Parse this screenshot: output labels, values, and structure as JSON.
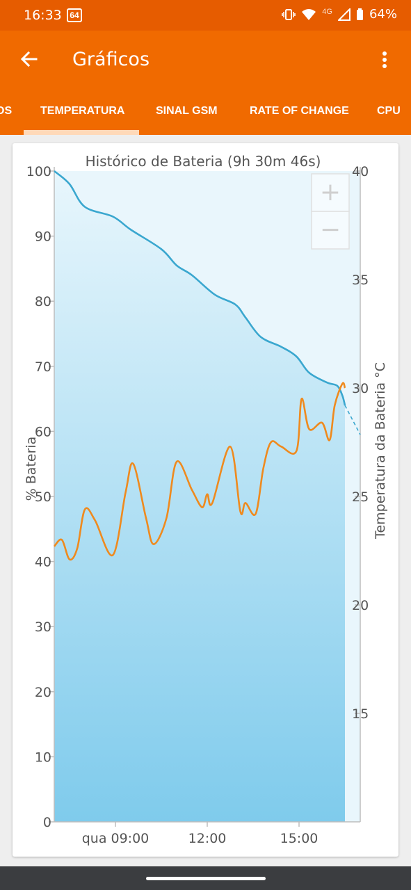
{
  "status": {
    "time": "16:33",
    "notification_badge": "64",
    "network": "4G",
    "battery": "64%"
  },
  "app_bar": {
    "title": "Gráficos"
  },
  "tabs": [
    "OS",
    "TEMPERATURA",
    "SINAL GSM",
    "RATE OF CHANGE",
    "CPU"
  ],
  "active_tab": 1,
  "colors": {
    "status_bar": "#e65c00",
    "app_bar": "#f06a00",
    "battery_line": "#3aa7cf",
    "temperature_line": "#ef8a1e",
    "area_fill": "#7fcbec"
  },
  "chart_data": {
    "type": "line",
    "title": "Histórico de Bateria (9h 30m 46s)",
    "ylabel": "% Bateria",
    "y2label": "Temperatura da Bateria °C",
    "ylim": [
      0,
      100
    ],
    "y2lim": [
      10,
      40
    ],
    "y_ticks": [
      "0",
      "10",
      "20",
      "30",
      "40",
      "50",
      "60",
      "70",
      "80",
      "90",
      "100"
    ],
    "y2_ticks": [
      "15",
      "20",
      "25",
      "30",
      "35",
      "40"
    ],
    "x_ticks": [
      {
        "label": "qua 09:00",
        "value": "09:00"
      },
      {
        "label": "12:00",
        "value": "12:00"
      },
      {
        "label": "15:00",
        "value": "15:00"
      }
    ],
    "xlim": [
      "07:00",
      "17:00"
    ],
    "series": [
      {
        "axis": "left",
        "x": [
          "07:00",
          "07:30",
          "08:00",
          "08:55",
          "09:30",
          "10:30",
          "11:00",
          "11:30",
          "12:15",
          "12:55",
          "13:15",
          "13:45",
          "14:25",
          "14:55",
          "15:20",
          "15:55",
          "16:15",
          "16:25",
          "16:30"
        ],
        "values": [
          100,
          98,
          94.5,
          93,
          91,
          88,
          85.5,
          84,
          81,
          79.5,
          77.5,
          74.5,
          73,
          71.5,
          69,
          67.5,
          67,
          65.5,
          64
        ],
        "projection": {
          "x": [
            "16:30",
            "17:00"
          ],
          "values": [
            64,
            59.5
          ]
        }
      },
      {
        "axis": "right",
        "x": [
          "07:00",
          "07:15",
          "07:30",
          "07:45",
          "08:00",
          "08:20",
          "08:55",
          "09:20",
          "09:35",
          "10:00",
          "10:15",
          "10:40",
          "11:00",
          "11:30",
          "11:50",
          "12:00",
          "12:10",
          "12:45",
          "13:05",
          "13:15",
          "13:35",
          "13:50",
          "14:05",
          "14:25",
          "14:55",
          "15:05",
          "15:20",
          "15:45",
          "16:00",
          "16:10",
          "16:25",
          "16:30"
        ],
        "values": [
          22.7,
          23.0,
          22.1,
          22.6,
          24.4,
          23.9,
          22.3,
          25.2,
          26.5,
          24.0,
          22.8,
          24.0,
          26.6,
          25.3,
          24.5,
          25.1,
          24.7,
          27.3,
          24.3,
          24.7,
          24.2,
          26.3,
          27.5,
          27.3,
          27.1,
          29.5,
          28.1,
          28.4,
          27.6,
          29.2,
          30.2,
          30.0
        ]
      }
    ],
    "zoom_controls": [
      "+",
      "−"
    ]
  }
}
